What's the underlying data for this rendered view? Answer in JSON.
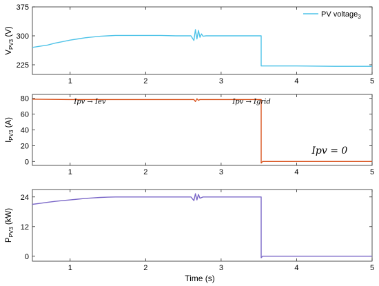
{
  "chart_data": [
    {
      "type": "line",
      "ylabel": "V",
      "ylabel_sub": "PV3",
      "ylabel_unit": " (V)",
      "xlim": [
        0.5,
        5
      ],
      "ylim": [
        200,
        375
      ],
      "yticks": [
        "225",
        "300",
        "375"
      ],
      "ytick_values": [
        225,
        300,
        375
      ],
      "xticks": [
        "1",
        "2",
        "3",
        "4",
        "5"
      ],
      "xtick_values": [
        1,
        2,
        3,
        4,
        5
      ],
      "legend": {
        "label": "PV voltage",
        "label_sub": "3",
        "position": "top-right"
      },
      "series": [
        {
          "name": "PV voltage3",
          "color": "#4fc3e8",
          "x": [
            0.5,
            0.6,
            0.7,
            0.8,
            0.9,
            1.0,
            1.1,
            1.2,
            1.3,
            1.4,
            1.5,
            1.6,
            1.8,
            2.0,
            2.2,
            2.4,
            2.6,
            2.64,
            2.66,
            2.68,
            2.7,
            2.72,
            2.74,
            2.76,
            2.8,
            3.0,
            3.2,
            3.4,
            3.53,
            3.53,
            3.6,
            4.0,
            4.5,
            5.0
          ],
          "y": [
            270,
            273,
            276,
            281,
            285,
            289,
            292,
            295,
            297,
            299,
            300,
            301,
            301,
            301,
            301,
            300,
            300,
            288,
            316,
            292,
            314,
            296,
            305,
            299,
            300,
            300,
            300,
            300,
            300,
            222,
            222,
            222,
            221,
            221
          ]
        }
      ]
    },
    {
      "type": "line",
      "ylabel": "I",
      "ylabel_sub": "PV3",
      "ylabel_unit": " (A)",
      "xlim": [
        0.5,
        5
      ],
      "ylim": [
        -5,
        85
      ],
      "yticks": [
        "0",
        "20",
        "40",
        "60",
        "80"
      ],
      "ytick_values": [
        0,
        20,
        40,
        60,
        80
      ],
      "xticks": [
        "1",
        "2",
        "3",
        "4",
        "5"
      ],
      "xtick_values": [
        1,
        2,
        3,
        4,
        5
      ],
      "annotations": [
        {
          "text": "Ipv → Iev",
          "x": 1.05,
          "y": 73
        },
        {
          "text": "Ipv → Igrid",
          "x": 3.15,
          "y": 73
        },
        {
          "text": "Ipv = 0",
          "x": 4.2,
          "y": 10
        }
      ],
      "series": [
        {
          "name": "",
          "color": "#d9541e",
          "x": [
            0.5,
            1.0,
            2.0,
            2.64,
            2.66,
            2.68,
            2.7,
            2.72,
            2.76,
            3.0,
            3.53,
            3.53,
            3.55,
            4.0,
            5.0
          ],
          "y": [
            79,
            78.5,
            78.5,
            78.5,
            76,
            79.5,
            77.5,
            78.5,
            78.5,
            78.5,
            78.5,
            -2,
            0,
            0,
            0
          ]
        }
      ]
    },
    {
      "type": "line",
      "ylabel": "P",
      "ylabel_sub": "PV3",
      "ylabel_unit": " (kW)",
      "xlim": [
        0.5,
        5
      ],
      "ylim": [
        -2,
        27
      ],
      "yticks": [
        "0",
        "12",
        "24"
      ],
      "ytick_values": [
        0,
        12,
        24
      ],
      "xticks": [
        "1",
        "2",
        "3",
        "4",
        "5"
      ],
      "xtick_values": [
        1,
        2,
        3,
        4,
        5
      ],
      "xlabel": "Time (s)",
      "series": [
        {
          "name": "",
          "color": "#7b68c8",
          "x": [
            0.5,
            0.6,
            0.7,
            0.8,
            0.9,
            1.0,
            1.1,
            1.2,
            1.3,
            1.4,
            1.5,
            1.6,
            1.8,
            2.0,
            2.4,
            2.6,
            2.64,
            2.66,
            2.68,
            2.7,
            2.72,
            2.76,
            2.8,
            3.0,
            3.53,
            3.53,
            3.55,
            4.0,
            5.0
          ],
          "y": [
            21,
            21.4,
            21.8,
            22.2,
            22.5,
            22.8,
            23.1,
            23.4,
            23.6,
            23.8,
            23.9,
            24,
            24,
            24,
            24,
            24,
            22.5,
            25.3,
            22.8,
            25,
            23.5,
            24,
            24,
            24,
            24,
            -0.6,
            0,
            0,
            0
          ]
        }
      ]
    }
  ]
}
